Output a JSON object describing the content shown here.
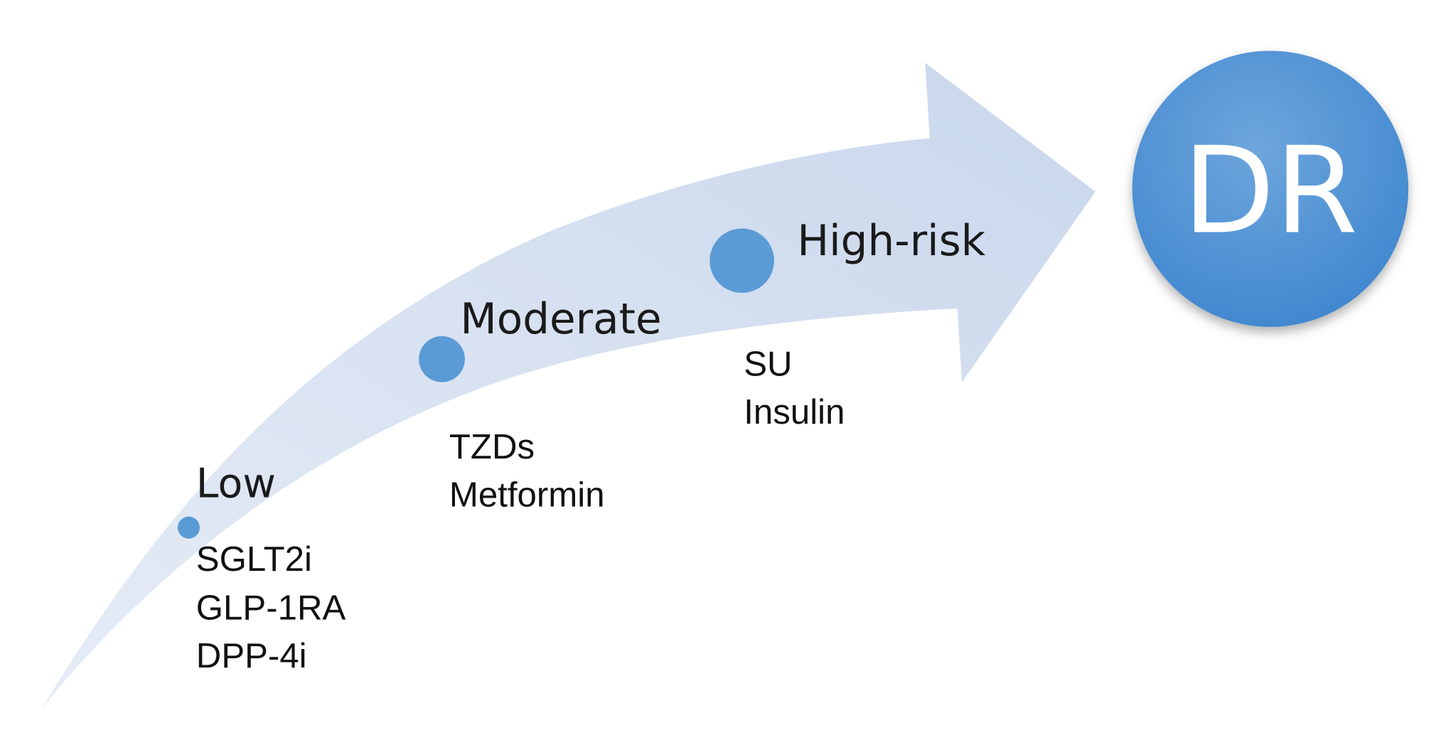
{
  "diagram": {
    "stages": [
      {
        "label": "Low",
        "drugs": [
          "SGLT2i",
          "GLP-1RA",
          "DPP-4i"
        ]
      },
      {
        "label": "Moderate",
        "drugs": [
          "TZDs",
          "Metformin"
        ]
      },
      {
        "label": "High-risk",
        "drugs": [
          "SU",
          "Insulin"
        ]
      }
    ],
    "outcome": "DR"
  }
}
